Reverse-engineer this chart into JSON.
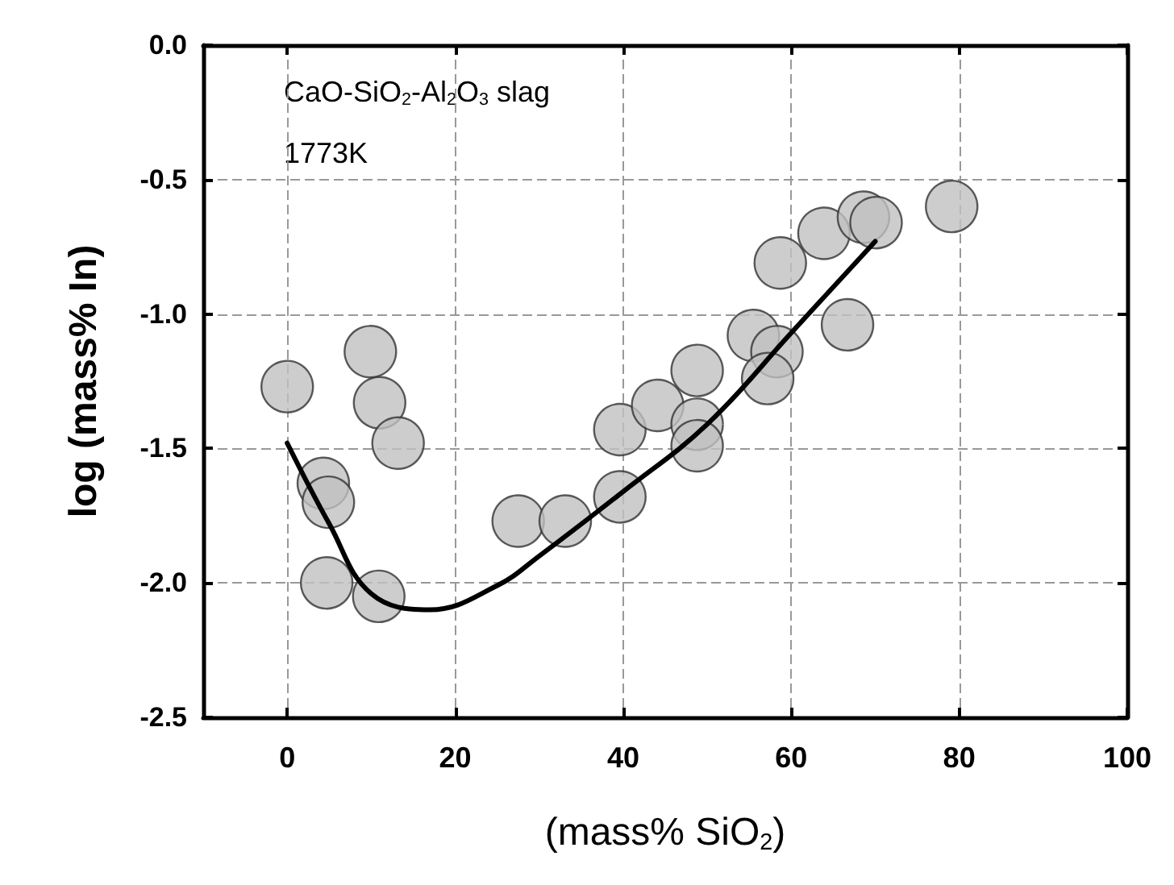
{
  "chart_data": {
    "type": "scatter",
    "xlabel": "(mass% SiO$_{2}$)",
    "ylabel": "log (mass% In)",
    "annotations": [
      "CaO-SiO$_{2}$-Al$_{2}$O$_{3}$ slag",
      "1773K"
    ],
    "xlim": [
      -10,
      100
    ],
    "xticks": [
      0,
      20,
      40,
      60,
      80,
      100
    ],
    "ylim": [
      -2.5,
      0
    ],
    "yticks": [
      -2.5,
      {
        "value": -2,
        "label": "-2.0"
      },
      -1.5,
      {
        "value": -1,
        "label": "-1.0"
      },
      -0.5,
      {
        "value": 0,
        "label": "0.0"
      }
    ],
    "grid": true,
    "marker": "circle",
    "series": [
      {
        "color": "#c0c0c0",
        "x": [
          0,
          4.3,
          4.9,
          4.7,
          10.9,
          9.9,
          11,
          13.2,
          27.5,
          33.1,
          39.6,
          39.6,
          44.1,
          48.8,
          48.8,
          48.8,
          55.5,
          58.3,
          57.2,
          58.7,
          63.9,
          68.6,
          70.1,
          66.7,
          79.1
        ],
        "values": [
          -1.27,
          -1.63,
          -1.7,
          -2.0,
          -2.05,
          -1.14,
          -1.33,
          -1.48,
          -1.77,
          -1.77,
          -1.68,
          -1.43,
          -1.34,
          -1.21,
          -1.41,
          -1.49,
          -1.08,
          -1.14,
          -1.24,
          -0.81,
          -0.7,
          -0.64,
          -0.66,
          -1.04,
          -0.6
        ]
      },
      {
        "type": "line",
        "color": "#000000",
        "marker": "none",
        "line_style": "solid",
        "x": [
          0,
          5,
          10,
          17,
          25,
          30,
          40,
          50,
          60,
          70
        ],
        "values": [
          -1.48,
          -1.78,
          -2.04,
          -2.1,
          -2.01,
          -1.9,
          -1.66,
          -1.41,
          -1.07,
          -0.73
        ]
      }
    ]
  }
}
